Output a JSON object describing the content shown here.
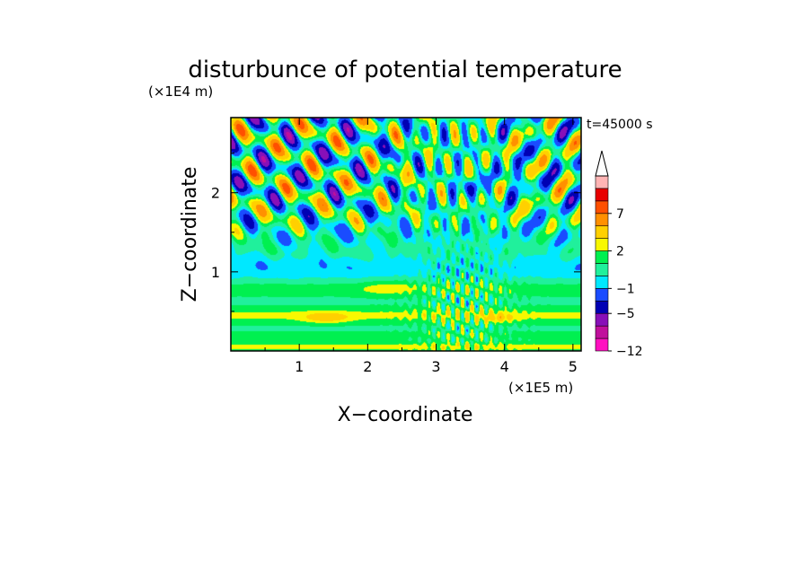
{
  "chart_data": {
    "type": "heatmap",
    "title": "disturbunce of potential temperature",
    "xlabel": "X−coordinate",
    "ylabel": "Z−coordinate",
    "x_unit": "(×1E5 m)",
    "y_unit": "(×1E4 m)",
    "time_label": "t=45000 s",
    "xlim": [
      0,
      5.12
    ],
    "ylim": [
      0,
      2.95
    ],
    "x_ticks": [
      1,
      2,
      3,
      4,
      5
    ],
    "y_ticks": [
      1,
      2
    ],
    "x_tick_labels": [
      "1",
      "2",
      "3",
      "4",
      "5"
    ],
    "y_tick_labels": [
      "1",
      "2"
    ],
    "colorbar": {
      "extend": "max",
      "levels": [
        -12,
        -9,
        -7,
        -5,
        -3,
        -1,
        0,
        1,
        2,
        3,
        5,
        7,
        9,
        12
      ],
      "tick_values": [
        -12,
        -5,
        -1,
        2,
        7
      ],
      "tick_labels": [
        "−12",
        "−5",
        "−1",
        "2",
        "7"
      ],
      "colors": [
        "#ff10c0",
        "#c0109c",
        "#8810b8",
        "#0000b4",
        "#1a4cff",
        "#00e8ff",
        "#20f09c",
        "#00f050",
        "#f8f800",
        "#ffd000",
        "#ff9000",
        "#ff5000",
        "#e80000",
        "#ffb4b4"
      ]
    }
  }
}
